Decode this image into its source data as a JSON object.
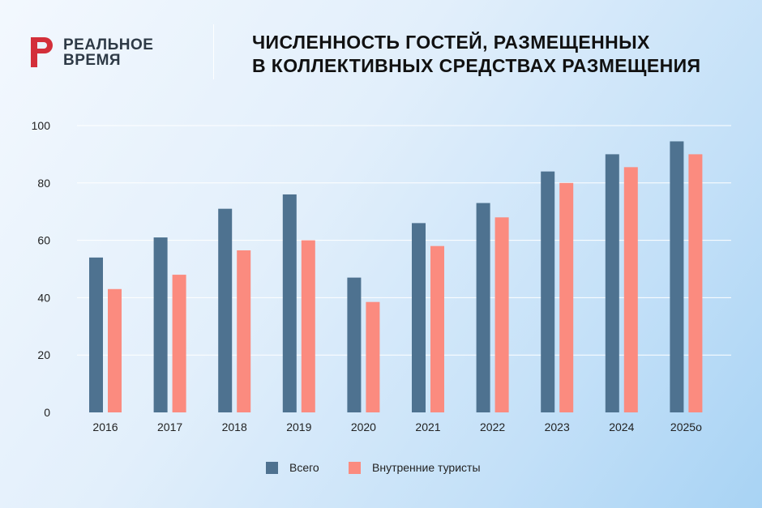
{
  "brand": {
    "name_line1": "РЕАЛЬНОЕ",
    "name_line2": "ВРЕМЯ",
    "mark_color": "#d32f3a"
  },
  "title": {
    "line1": "ЧИСЛЕННОСТЬ ГОСТЕЙ, РАЗМЕЩЕННЫХ",
    "line2": "В КОЛЛЕКТИВНЫХ СРЕДСТВАХ РАЗМЕЩЕНИЯ"
  },
  "chart_data": {
    "type": "bar",
    "categories": [
      "2016",
      "2017",
      "2018",
      "2019",
      "2020",
      "2021",
      "2022",
      "2023",
      "2024",
      "2025о"
    ],
    "series": [
      {
        "name": "Всего",
        "color": "#4e7290",
        "values": [
          54,
          61,
          71,
          76,
          47,
          66,
          73,
          84,
          90,
          94.5
        ]
      },
      {
        "name": "Внутренние туристы",
        "color": "#fb8b7f",
        "values": [
          43,
          48,
          56.5,
          60,
          38.5,
          58,
          68,
          80,
          85.5,
          90
        ]
      }
    ],
    "y_ticks": [
      "0",
      "20",
      "40",
      "60",
      "80",
      "100"
    ],
    "ylim": [
      0,
      100
    ],
    "grid": true,
    "legend_position": "bottom"
  }
}
